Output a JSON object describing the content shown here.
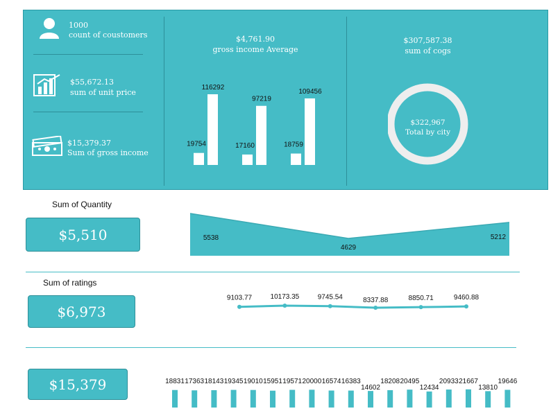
{
  "kpis": {
    "customers": {
      "value": "1000",
      "label": "count of coustomers"
    },
    "unit_price": {
      "value": "$55,672.13",
      "label": "sum of unit price"
    },
    "gross_income": {
      "value": "$15,379.37",
      "label": "Sum of gross income"
    }
  },
  "gross_income_avg": {
    "value": "$4,761.90",
    "label": "gross income Average"
  },
  "cogs": {
    "value": "$307,587.38",
    "label": "sum of cogs"
  },
  "donut": {
    "value": "$322,967",
    "label": "Total by city"
  },
  "quantity": {
    "title": "Sum of Quantity",
    "card": "$5,510"
  },
  "ratings": {
    "title": "Sum of ratings",
    "card": "$6,973"
  },
  "bottom": {
    "card": "$15,379"
  },
  "colors": {
    "accent": "#45bcc6",
    "border": "#2e8f98"
  },
  "chart_data": [
    {
      "type": "bar",
      "id": "gross-income-bars",
      "series": [
        {
          "values": [
            19754,
            17160,
            18759
          ]
        },
        {
          "values": [
            116292,
            97219,
            109456
          ]
        }
      ]
    },
    {
      "type": "area",
      "id": "quantity-area",
      "values": [
        5538,
        4629,
        5212
      ]
    },
    {
      "type": "line",
      "id": "ratings-line",
      "values": [
        9103.77,
        10173.35,
        9745.54,
        8337.88,
        8850.71,
        9460.88
      ]
    },
    {
      "type": "bar",
      "id": "bottom-bars",
      "values": [
        18831,
        17363,
        18143,
        19345,
        19010,
        15951,
        19571,
        20000,
        16574,
        16383,
        14602,
        18208,
        20495,
        12434,
        20933,
        21667,
        13810,
        19646
      ]
    }
  ]
}
